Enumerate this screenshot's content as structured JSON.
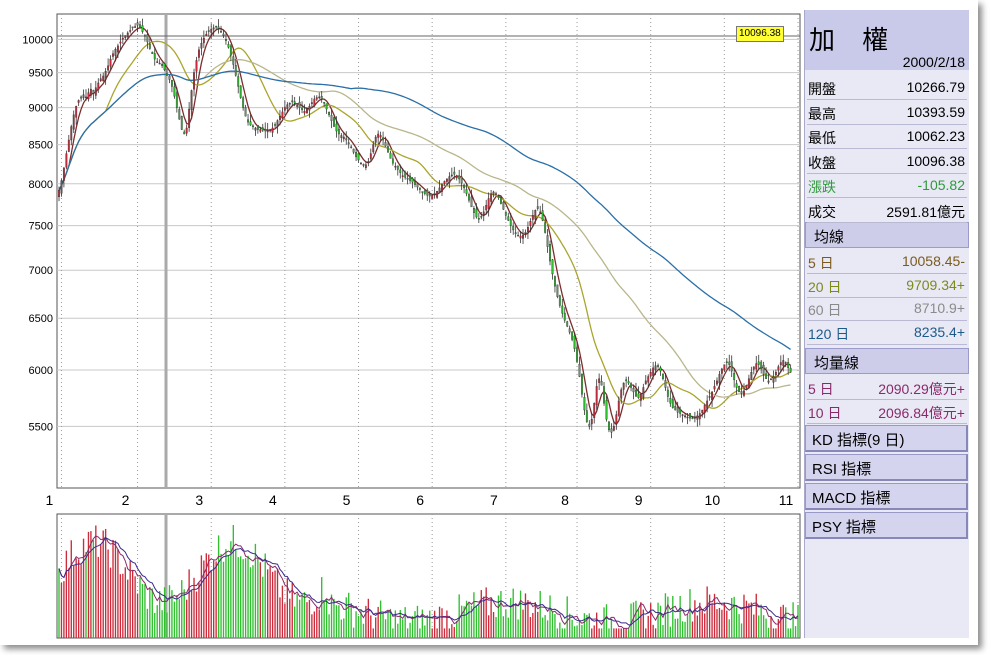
{
  "chart_data": [
    {
      "type": "line",
      "subtype": "candlestick",
      "y_scale": "log",
      "ylim": [
        5000,
        10400
      ],
      "y_ticks": [
        "10000",
        "9500",
        "9000",
        "8500",
        "8000",
        "7500",
        "7000",
        "6500",
        "6000",
        "5500"
      ],
      "y_tick_values": [
        10000,
        9500,
        9000,
        8500,
        8000,
        7500,
        7000,
        6500,
        6000,
        5500
      ],
      "x_ticks": [
        "1",
        "2",
        "3",
        "4",
        "5",
        "6",
        "7",
        "8",
        "9",
        "10",
        "11"
      ],
      "x_tick_index": [
        2,
        33,
        63,
        93,
        123,
        153,
        183,
        212,
        242,
        272,
        302
      ],
      "n_days": 302,
      "close": [
        7920,
        8040,
        8200,
        8380,
        8560,
        8740,
        8900,
        9020,
        9100,
        9130,
        9180,
        9150,
        9210,
        9260,
        9200,
        9280,
        9350,
        9410,
        9450,
        9520,
        9600,
        9700,
        9780,
        9850,
        9900,
        9960,
        10020,
        10060,
        10100,
        10140,
        10180,
        10200,
        10220,
        10180,
        10120,
        10050,
        9960,
        9860,
        9780,
        9700,
        9660,
        9640,
        9600,
        9540,
        9460,
        9400,
        9300,
        9160,
        9000,
        8840,
        8700,
        8640,
        8720,
        8980,
        9240,
        9500,
        9680,
        9840,
        9940,
        10020,
        10080,
        10120,
        10160,
        10180,
        10200,
        10170,
        10120,
        10060,
        9980,
        9880,
        9760,
        9620,
        9460,
        9300,
        9140,
        9000,
        8880,
        8800,
        8760,
        8740,
        8720,
        8700,
        8700,
        8690,
        8680,
        8690,
        8700,
        8720,
        8760,
        8820,
        8880,
        8940,
        9000,
        9040,
        9060,
        9080,
        9060,
        9030,
        9000,
        8970,
        8950,
        8980,
        9020,
        9070,
        9120,
        9140,
        9150,
        9120,
        9060,
        8980,
        8900,
        8820,
        8740,
        8680,
        8640,
        8620,
        8600,
        8560,
        8520,
        8460,
        8400,
        8340,
        8300,
        8260,
        8240,
        8240,
        8280,
        8380,
        8500,
        8600,
        8640,
        8620,
        8560,
        8480,
        8400,
        8320,
        8260,
        8220,
        8180,
        8140,
        8100,
        8080,
        8060,
        8040,
        8020,
        7990,
        7960,
        7930,
        7900,
        7880,
        7860,
        7850,
        7860,
        7880,
        7910,
        7950,
        7990,
        8030,
        8060,
        8090,
        8110,
        8120,
        8100,
        8060,
        8010,
        7950,
        7880,
        7800,
        7720,
        7650,
        7600,
        7580,
        7600,
        7660,
        7740,
        7820,
        7880,
        7900,
        7880,
        7830,
        7760,
        7690,
        7620,
        7560,
        7500,
        7450,
        7410,
        7390,
        7380,
        7390,
        7420,
        7480,
        7550,
        7620,
        7680,
        7700,
        7660,
        7560,
        7420,
        7260,
        7100,
        6960,
        6830,
        6720,
        6630,
        6550,
        6480,
        6420,
        6360,
        6290,
        6200,
        6080,
        5940,
        5780,
        5640,
        5540,
        5500,
        5560,
        5700,
        5850,
        5920,
        5860,
        5700,
        5560,
        5470,
        5450,
        5500,
        5600,
        5720,
        5820,
        5880,
        5900,
        5880,
        5840,
        5800,
        5760,
        5750,
        5780,
        5840,
        5900,
        5940,
        5980,
        6020,
        6040,
        6030,
        5990,
        5920,
        5840,
        5760,
        5700,
        5660,
        5640,
        5620,
        5610,
        5600,
        5590,
        5580,
        5570,
        5570,
        5580,
        5590,
        5610,
        5640,
        5680,
        5720,
        5760,
        5800,
        5850,
        5900,
        5960,
        6010,
        6050,
        6070,
        6050,
        5990,
        5910,
        5840,
        5800,
        5790,
        5810,
        5860,
        5920,
        5980,
        6030,
        6060,
        6050,
        6010,
        5960,
        5920,
        5900,
        5910,
        5940,
        5980,
        6030,
        6070,
        6090,
        6070,
        6020,
        5980
      ],
      "ma_lines": [
        "MA5",
        "MA20",
        "MA60",
        "MA120"
      ],
      "current_price_label": "10096.38"
    },
    {
      "type": "bar",
      "subtype": "volume",
      "bar_colors": [
        "#cc2b3b",
        "#2fbf2f"
      ],
      "ma_lines": [
        "5 日",
        "10 日"
      ]
    }
  ],
  "info": {
    "name": "加 權",
    "date": "2000/2/18",
    "rows": [
      {
        "k": "開盤",
        "v": "10266.79",
        "color": "#000000"
      },
      {
        "k": "最高",
        "v": "10393.59",
        "color": "#000000"
      },
      {
        "k": "最低",
        "v": "10062.23",
        "color": "#000000"
      },
      {
        "k": "收盤",
        "v": "10096.38",
        "color": "#000000"
      },
      {
        "k": "漲跌",
        "v": "-105.82",
        "color": "#2e9a3a"
      },
      {
        "k": "成交",
        "v": "2591.81億元",
        "color": "#000000"
      }
    ],
    "ma_title": "均線",
    "ma_rows": [
      {
        "k": "5 日",
        "v": "10058.45-",
        "color": "#7b5a1d"
      },
      {
        "k": "20 日",
        "v": "9709.34+",
        "color": "#7c8a18"
      },
      {
        "k": "60 日",
        "v": "8710.9+",
        "color": "#8a8a8a"
      },
      {
        "k": "120 日",
        "v": "8235.4+",
        "color": "#1d5a8a"
      }
    ],
    "vol_title": "均量線",
    "vol_rows": [
      {
        "k": "5 日",
        "v": "2090.29億元+",
        "color": "#8a2a6a"
      },
      {
        "k": "10 日",
        "v": "2096.84億元+",
        "color": "#8a2a6a"
      }
    ],
    "buttons": [
      "KD 指標(9 日)",
      "RSI 指標",
      "MACD 指標",
      "PSY 指標"
    ]
  },
  "colors": {
    "up": "#cc2b3b",
    "down": "#2fbf2f",
    "ma5": "#7b2d2d",
    "ma20": "#a9a52c",
    "ma60": "#b9b68a",
    "ma120": "#2a6fa8",
    "grid": "#c8c8c8",
    "frame": "#555555"
  }
}
